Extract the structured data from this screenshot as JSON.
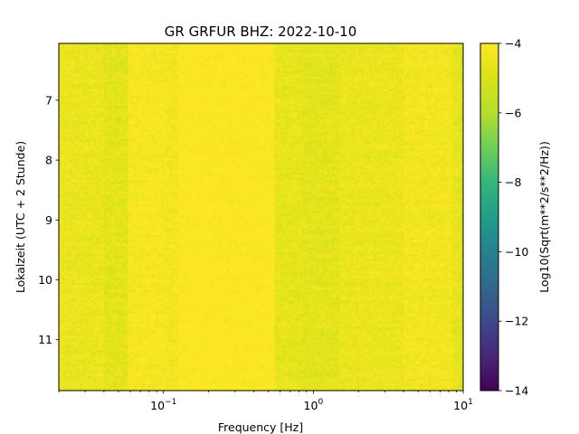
{
  "chart_data": {
    "type": "heatmap",
    "title": "GR GRFUR  BHZ: 2022-10-10",
    "xlabel": "Frequency [Hz]",
    "ylabel": "Lokalzeit (UTC + 2 Stunde)",
    "colorbar_label": "Log10(Sqrt(m**2/s**2/Hz))",
    "x_scale": "log",
    "xlim": [
      0.02,
      10
    ],
    "ylim": [
      11.85,
      6.05
    ],
    "y_inverted": true,
    "colormap": "viridis",
    "clim": [
      -14,
      -4
    ],
    "x_ticks": [
      {
        "value": 0.1,
        "base": "10",
        "exp": "−1"
      },
      {
        "value": 1,
        "base": "10",
        "exp": "0"
      },
      {
        "value": 10,
        "base": "10",
        "exp": "1"
      }
    ],
    "y_ticks": [
      {
        "value": 7,
        "label": "7"
      },
      {
        "value": 8,
        "label": "8"
      },
      {
        "value": 9,
        "label": "9"
      },
      {
        "value": 10,
        "label": "10"
      },
      {
        "value": 11,
        "label": "11"
      }
    ],
    "colorbar_ticks": [
      {
        "value": -4,
        "label": "−4"
      },
      {
        "value": -6,
        "label": "−6"
      },
      {
        "value": -8,
        "label": "−8"
      },
      {
        "value": -10,
        "label": "−10"
      },
      {
        "value": -12,
        "label": "−12"
      },
      {
        "value": -14,
        "label": "−14"
      }
    ],
    "frequency_bands": [
      {
        "f_start": 0.02,
        "f_end": 0.04,
        "mean_level": -4.5
      },
      {
        "f_start": 0.04,
        "f_end": 0.058,
        "mean_level": -4.7
      },
      {
        "f_start": 0.058,
        "f_end": 0.105,
        "mean_level": -4.2
      },
      {
        "f_start": 0.105,
        "f_end": 0.125,
        "mean_level": -4.3
      },
      {
        "f_start": 0.125,
        "f_end": 0.55,
        "mean_level": -4.0
      },
      {
        "f_start": 0.55,
        "f_end": 0.85,
        "mean_level": -4.6
      },
      {
        "f_start": 0.85,
        "f_end": 1.5,
        "mean_level": -4.7
      },
      {
        "f_start": 1.5,
        "f_end": 4.0,
        "mean_level": -4.5
      },
      {
        "f_start": 4.0,
        "f_end": 8.5,
        "mean_level": -4.3
      },
      {
        "f_start": 8.5,
        "f_end": 9.6,
        "mean_level": -4.6
      },
      {
        "f_start": 9.6,
        "f_end": 10,
        "mean_level": -5.0
      }
    ]
  }
}
